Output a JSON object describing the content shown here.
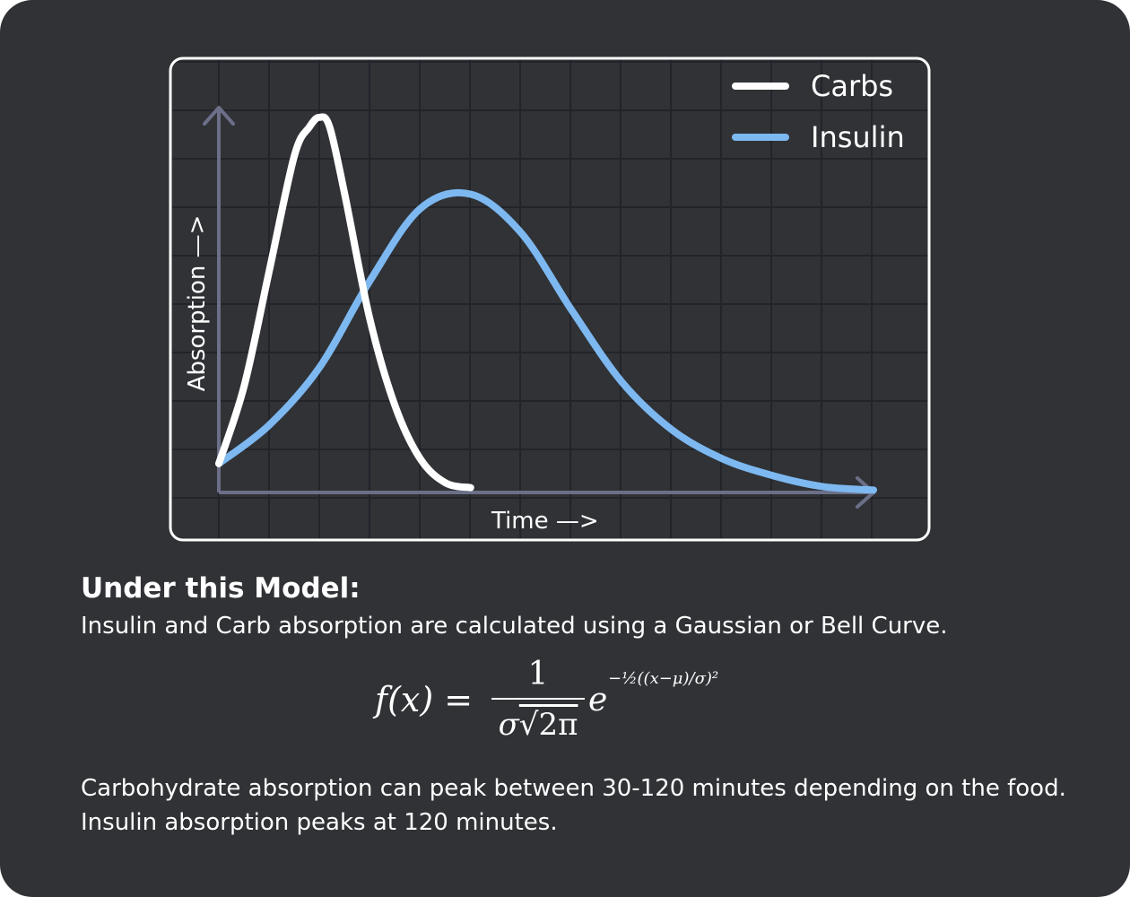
{
  "colors": {
    "background": "#303236",
    "grid": "#22242a",
    "axis": "#6c6f88",
    "frame": "#ffffff",
    "carbs": "#ffffff",
    "insulin": "#7db8f0",
    "text": "#ffffff"
  },
  "chart_data": {
    "type": "line",
    "title": "",
    "xlabel": "Time —>",
    "ylabel": "Absorption —>",
    "grid": true,
    "legend_position": "top-right",
    "xlim": [
      0,
      13
    ],
    "ylim": [
      0,
      8
    ],
    "series": [
      {
        "name": "Carbs",
        "color": "#ffffff",
        "x": [
          0,
          0.5,
          1,
          1.5,
          1.8,
          2,
          2.2,
          2.5,
          3,
          3.5,
          4,
          4.5,
          5
        ],
        "y": [
          0.6,
          2.2,
          4.6,
          7.0,
          7.6,
          7.8,
          7.6,
          6.2,
          3.6,
          1.8,
          0.7,
          0.2,
          0.1
        ]
      },
      {
        "name": "Insulin",
        "color": "#7db8f0",
        "x": [
          0,
          1,
          2,
          3,
          4,
          5,
          6,
          7,
          8,
          9,
          10,
          11,
          12,
          13
        ],
        "y": [
          0.6,
          1.4,
          2.6,
          4.4,
          5.9,
          6.2,
          5.4,
          3.8,
          2.3,
          1.3,
          0.7,
          0.35,
          0.12,
          0.05
        ]
      }
    ]
  },
  "section": {
    "heading": "Under this Model:",
    "intro": "Insulin and Carb absorption are calculated using a Gaussian or Bell Curve.",
    "formula": {
      "lhs": "f(x) =",
      "numerator": "1",
      "denominator_sigma": "σ",
      "denominator_root": "√2π",
      "base": "e",
      "exponent": "−½((x−μ)/σ)²"
    },
    "note": "Carbohydrate absorption can peak between 30-120 minutes depending on the food. Insulin absorption peaks at 120 minutes."
  }
}
